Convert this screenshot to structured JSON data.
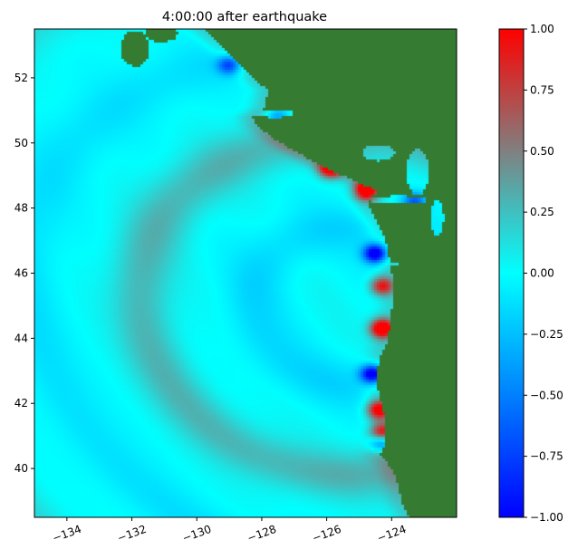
{
  "chart_data": [
    {
      "type": "heatmap",
      "title": "4:00:00 after earthquake",
      "xlabel": "",
      "ylabel": "",
      "xlim": [
        -135.0,
        -122.0
      ],
      "ylim": [
        38.5,
        53.5
      ],
      "xticks": [
        -134,
        -132,
        -130,
        -128,
        -126,
        -124
      ],
      "xtick_labels": [
        "−134",
        "−132",
        "−130",
        "−128",
        "−126",
        "−124"
      ],
      "yticks": [
        40,
        42,
        44,
        46,
        48,
        50,
        52
      ],
      "ytick_labels": [
        "40",
        "42",
        "44",
        "46",
        "48",
        "50",
        "52"
      ],
      "grid": false,
      "colors": {
        "land": "#367b32",
        "ocean_zero": "#00ffff",
        "positive_max": "#ff0000",
        "negative_min": "#0000ff"
      },
      "wave_fronts": [
        {
          "kind": "coastal_band",
          "amplitude": 0.35
        },
        {
          "kind": "ring",
          "radius_deg": 2.4,
          "amplitude": -0.15
        },
        {
          "kind": "ring",
          "radius_deg": 5.2,
          "amplitude": 0.3
        },
        {
          "kind": "ring",
          "radius_deg": 8.0,
          "amplitude": -0.12
        },
        {
          "kind": "ring",
          "radius_deg": 11.0,
          "amplitude": 0.18
        }
      ],
      "coastal_anomalies": [
        {
          "lon": -124.8,
          "lat": 48.55,
          "amplitude": 1.0
        },
        {
          "lon": -125.9,
          "lat": 49.2,
          "amplitude": 0.8
        },
        {
          "lon": -124.5,
          "lat": 46.6,
          "amplitude": -1.0
        },
        {
          "lon": -124.3,
          "lat": 45.6,
          "amplitude": 0.7
        },
        {
          "lon": -124.3,
          "lat": 44.3,
          "amplitude": 1.0
        },
        {
          "lon": -124.6,
          "lat": 42.9,
          "amplitude": -1.0
        },
        {
          "lon": -124.4,
          "lat": 41.8,
          "amplitude": 0.8
        },
        {
          "lon": -124.3,
          "lat": 41.1,
          "amplitude": 0.7
        },
        {
          "lon": -124.3,
          "lat": 40.8,
          "amplitude": -0.6
        },
        {
          "lon": -129.0,
          "lat": 52.4,
          "amplitude": -0.6
        },
        {
          "lon": -127.5,
          "lat": 50.8,
          "amplitude": -0.35
        },
        {
          "lon": -123.3,
          "lat": 48.2,
          "amplitude": -0.5
        }
      ]
    },
    {
      "type": "colorbar",
      "range": [
        -1.0,
        1.0
      ],
      "ticks": [
        1.0,
        0.75,
        0.5,
        0.25,
        0.0,
        -0.25,
        -0.5,
        -0.75,
        -1.0
      ],
      "tick_labels": [
        "1.00",
        "0.75",
        "0.50",
        "0.25",
        "0.00",
        "−0.25",
        "−0.50",
        "−0.75",
        "−1.00"
      ],
      "colormap_stops": [
        {
          "value": -1.0,
          "color": "#0000ff"
        },
        {
          "value": -0.5,
          "color": "#0080ff"
        },
        {
          "value": 0.0,
          "color": "#00ffff"
        },
        {
          "value": 0.5,
          "color": "#808080"
        },
        {
          "value": 1.0,
          "color": "#ff0000"
        }
      ]
    }
  ]
}
